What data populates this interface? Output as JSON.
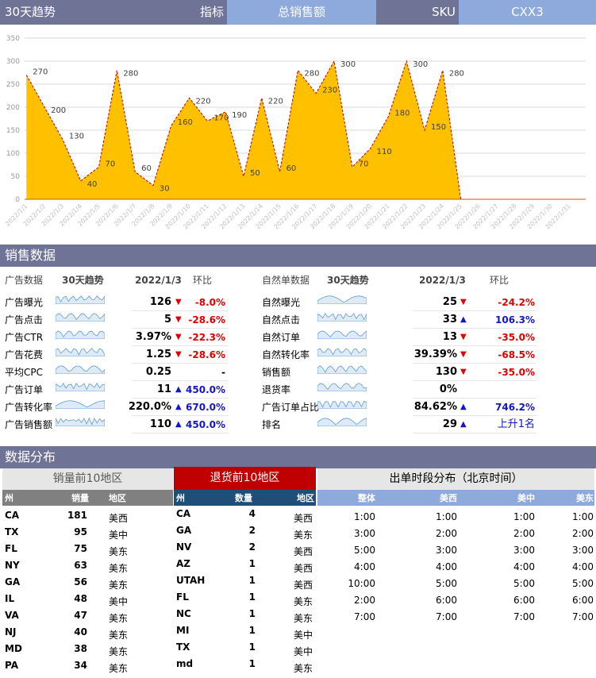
{
  "header": {
    "trend_label": "30天趋势",
    "metric_label": "指标",
    "metric_value": "总销售额",
    "sku_label": "SKU",
    "sku_value": "CXX3"
  },
  "chart_data": {
    "type": "area",
    "ylim": [
      0,
      350
    ],
    "yticks": [
      0,
      50,
      100,
      150,
      200,
      250,
      300,
      350
    ],
    "categories": [
      "2022/1/1",
      "2022/1/2",
      "2022/1/3",
      "2022/1/4",
      "2022/1/5",
      "2022/1/6",
      "2022/1/7",
      "2022/1/8",
      "2022/1/9",
      "2022/1/10",
      "2022/1/11",
      "2022/1/12",
      "2022/1/13",
      "2022/1/14",
      "2022/1/15",
      "2022/1/16",
      "2022/1/17",
      "2022/1/18",
      "2022/1/19",
      "2022/1/20",
      "2022/1/21",
      "2022/1/22",
      "2022/1/23",
      "2022/1/24",
      "2022/1/25",
      "2022/1/26",
      "2022/1/27",
      "2022/1/28",
      "2022/1/29",
      "2022/1/30",
      "2022/1/31"
    ],
    "values": [
      270,
      200,
      130,
      40,
      70,
      280,
      60,
      30,
      160,
      220,
      170,
      190,
      50,
      220,
      60,
      280,
      230,
      300,
      70,
      110,
      180,
      300,
      150,
      280,
      0,
      null,
      null,
      null,
      null,
      null,
      null
    ],
    "data_labels": [
      "270",
      "200",
      "130",
      "40",
      "70",
      "280",
      "60",
      "30",
      "160",
      "220",
      "170",
      "190",
      "50",
      "220",
      "60",
      "280",
      "230",
      "300",
      "70",
      "110",
      "180",
      "300",
      "150",
      "280",
      "",
      "",
      "",
      "",
      "",
      "",
      ""
    ],
    "grid": true,
    "fill_color": "#ffc000",
    "line_color": "#c00000"
  },
  "sales_section": {
    "title": "销售数据",
    "ad_header": {
      "name": "广告数据",
      "trend": "30天趋势",
      "date": "2022/1/3",
      "change": "环比"
    },
    "natural_header": {
      "name": "自然单数据",
      "trend": "30天趋势",
      "date": "2022/1/3",
      "change": "环比"
    },
    "ad_rows": [
      {
        "name": "广告曝光",
        "value": "126",
        "arrow": "▼",
        "change": "-8.0%",
        "dir": "down"
      },
      {
        "name": "广告点击",
        "value": "5",
        "arrow": "▼",
        "change": "-28.6%",
        "dir": "down"
      },
      {
        "name": "广告CTR",
        "value": "3.97%",
        "arrow": "▼",
        "change": "-22.3%",
        "dir": "down"
      },
      {
        "name": "广告花费",
        "value": "1.25",
        "arrow": "▼",
        "change": "-28.6%",
        "dir": "down"
      },
      {
        "name": "平均CPC",
        "value": "0.25",
        "arrow": "",
        "change": "-",
        "dir": "flat"
      },
      {
        "name": "广告订单",
        "value": "11",
        "arrow": "▲",
        "change": "450.0%",
        "dir": "up"
      },
      {
        "name": "广告转化率",
        "value": "220.0%",
        "arrow": "▲",
        "change": "670.0%",
        "dir": "up"
      },
      {
        "name": "广告销售额",
        "value": "110",
        "arrow": "▲",
        "change": "450.0%",
        "dir": "up"
      }
    ],
    "natural_rows": [
      {
        "name": "自然曝光",
        "value": "25",
        "arrow": "▼",
        "change": "-24.2%",
        "dir": "down"
      },
      {
        "name": "自然点击",
        "value": "33",
        "arrow": "▲",
        "change": "106.3%",
        "dir": "up"
      },
      {
        "name": "自然订单",
        "value": "13",
        "arrow": "▼",
        "change": "-35.0%",
        "dir": "down"
      },
      {
        "name": "自然转化率",
        "value": "39.39%",
        "arrow": "▼",
        "change": "-68.5%",
        "dir": "down"
      },
      {
        "name": "销售额",
        "value": "130",
        "arrow": "▼",
        "change": "-35.0%",
        "dir": "down"
      },
      {
        "name": "退货率",
        "value": "0%",
        "arrow": "",
        "change": "",
        "dir": "flat"
      },
      {
        "name": "广告订单占比",
        "value": "84.62%",
        "arrow": "▲",
        "change": "746.2%",
        "dir": "up"
      },
      {
        "name": "排名",
        "value": "29",
        "arrow": "▲",
        "change": "上升1名",
        "dir": "up"
      }
    ]
  },
  "distribution": {
    "title": "数据分布",
    "top_sales": {
      "title": "销量前10地区",
      "headers": [
        "州",
        "销量",
        "地区"
      ],
      "rows": [
        [
          "CA",
          "181",
          "美西"
        ],
        [
          "TX",
          "95",
          "美中"
        ],
        [
          "FL",
          "75",
          "美东"
        ],
        [
          "NY",
          "63",
          "美东"
        ],
        [
          "GA",
          "56",
          "美东"
        ],
        [
          "IL",
          "48",
          "美中"
        ],
        [
          "VA",
          "47",
          "美东"
        ],
        [
          "NJ",
          "40",
          "美东"
        ],
        [
          "MD",
          "38",
          "美东"
        ],
        [
          "PA",
          "34",
          "美东"
        ]
      ]
    },
    "top_returns": {
      "title": "退货前10地区",
      "headers": [
        "州",
        "数量",
        "地区"
      ],
      "rows": [
        [
          "CA",
          "4",
          "美西"
        ],
        [
          "GA",
          "2",
          "美东"
        ],
        [
          "NV",
          "2",
          "美西"
        ],
        [
          "AZ",
          "1",
          "美西"
        ],
        [
          "UTAH",
          "1",
          "美西"
        ],
        [
          "FL",
          "1",
          "美东"
        ],
        [
          "NC",
          "1",
          "美东"
        ],
        [
          "MI",
          "1",
          "美中"
        ],
        [
          "TX",
          "1",
          "美中"
        ],
        [
          "md",
          "1",
          "美东"
        ]
      ]
    },
    "order_time": {
      "title": "出单时段分布（北京时间）",
      "headers": [
        "整体",
        "美西",
        "美中",
        "美东"
      ],
      "rows": [
        [
          "1:00",
          "1:00",
          "1:00",
          "1:00"
        ],
        [
          "3:00",
          "2:00",
          "2:00",
          "2:00"
        ],
        [
          "5:00",
          "3:00",
          "3:00",
          "3:00"
        ],
        [
          "4:00",
          "4:00",
          "4:00",
          "4:00"
        ],
        [
          "10:00",
          "5:00",
          "5:00",
          "5:00"
        ],
        [
          "2:00",
          "6:00",
          "6:00",
          "6:00"
        ],
        [
          "7:00",
          "7:00",
          "7:00",
          "7:00"
        ]
      ]
    }
  }
}
